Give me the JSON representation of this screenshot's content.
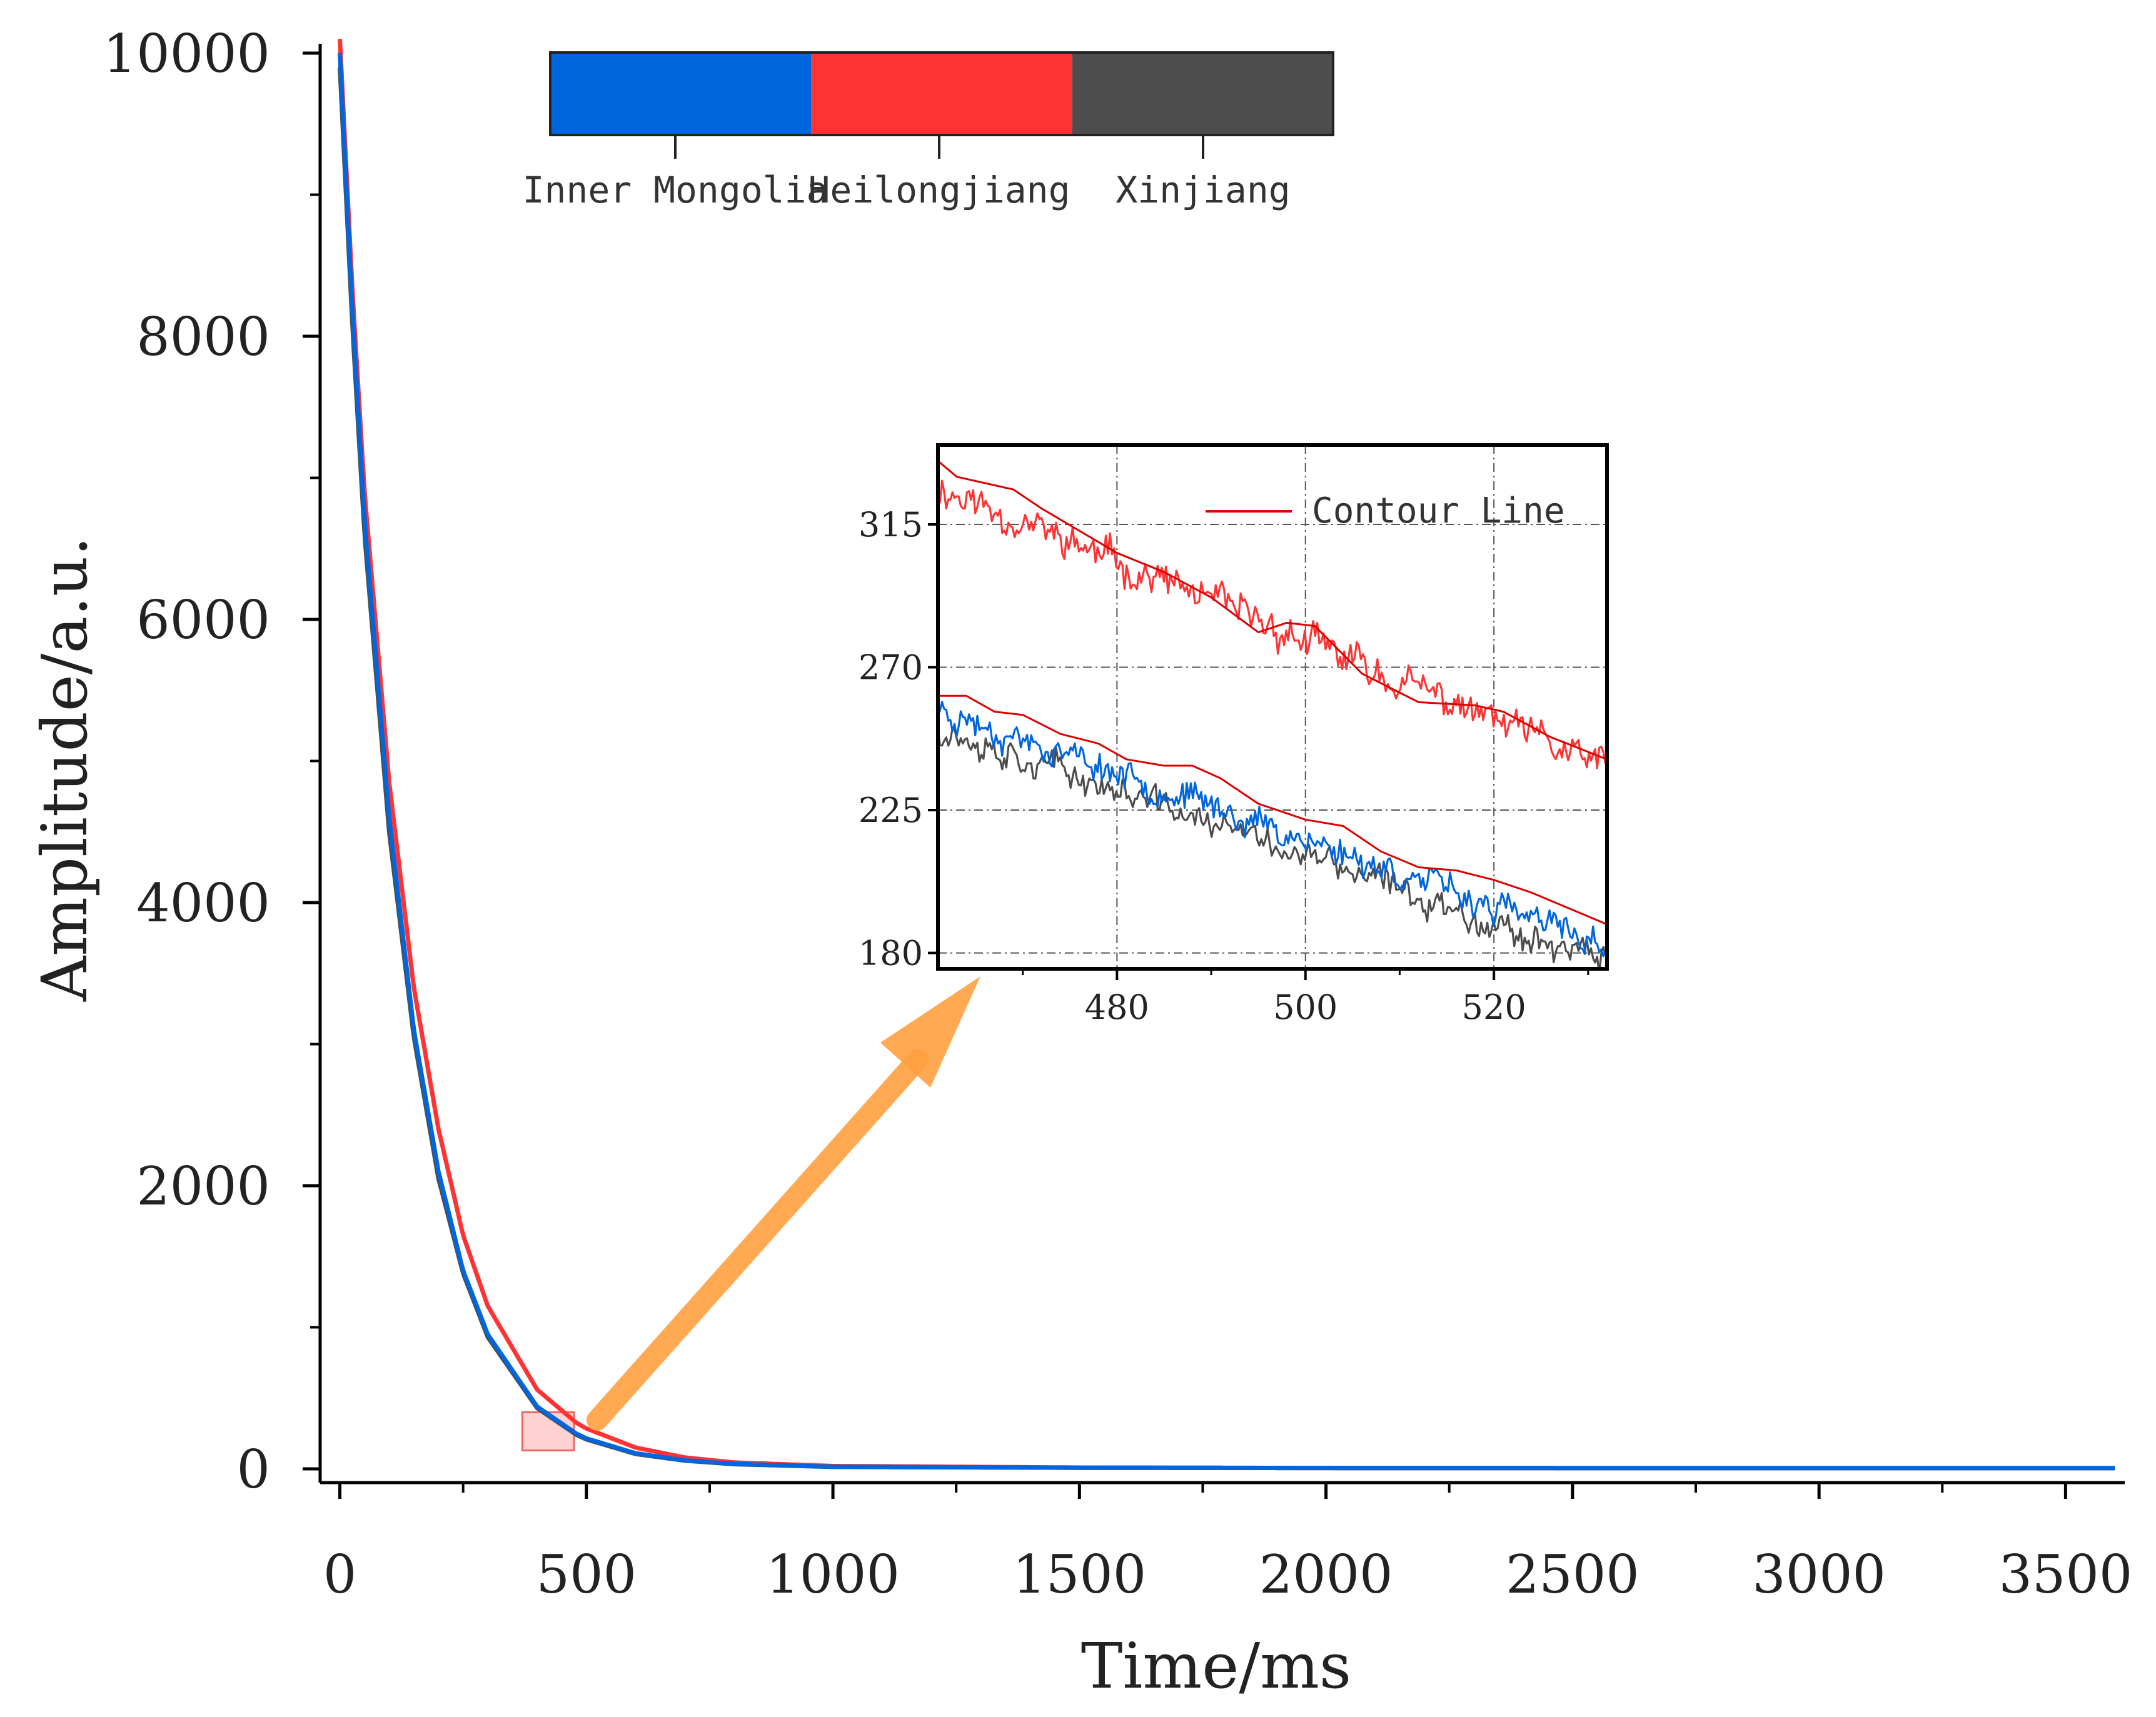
{
  "chart_data": [
    {
      "type": "line",
      "title": "",
      "xlabel": "Time/ms",
      "ylabel": "Amplitude/a.u.",
      "xlim": [
        -40,
        3620
      ],
      "ylim": [
        0,
        10000
      ],
      "x_ticks": [
        0,
        500,
        1000,
        1500,
        2000,
        2500,
        3000,
        3500
      ],
      "y_ticks": [
        0,
        2000,
        4000,
        6000,
        8000,
        10000
      ],
      "x_tick_labels": [
        "0",
        "500",
        "1000",
        "1500",
        "2000",
        "2500",
        "3000",
        "3500"
      ],
      "y_tick_labels": [
        "0",
        "2000",
        "4000",
        "6000",
        "8000",
        "10000"
      ],
      "grid": false,
      "legend_position": "top",
      "legend": [
        "Inner Mongolia",
        "Heilongjiang",
        "Xinjiang"
      ],
      "series": [
        {
          "name": "Inner Mongolia",
          "color": "#0066dd",
          "x": [
            0,
            25,
            50,
            100,
            150,
            200,
            250,
            300,
            400,
            480,
            500,
            600,
            700,
            800,
            1000,
            1500,
            2000,
            2500,
            3000,
            3600
          ],
          "values": [
            10000,
            8200,
            6700,
            4600,
            3100,
            2100,
            1400,
            950,
            440,
            248,
            215,
            110,
            60,
            35,
            15,
            8,
            6,
            5,
            5,
            5
          ]
        },
        {
          "name": "Heilongjiang",
          "color": "#ff3333",
          "x": [
            0,
            25,
            50,
            100,
            150,
            200,
            250,
            300,
            400,
            480,
            500,
            600,
            700,
            800,
            1000,
            1500,
            2000,
            2500,
            3000,
            3600
          ],
          "values": [
            10100,
            8350,
            6900,
            4850,
            3400,
            2400,
            1650,
            1150,
            560,
            325,
            285,
            150,
            80,
            45,
            20,
            9,
            6,
            5,
            5,
            5
          ]
        },
        {
          "name": "Xinjiang",
          "color": "#4d4d4d",
          "x": [
            0,
            25,
            50,
            100,
            150,
            200,
            250,
            300,
            400,
            480,
            500,
            600,
            700,
            800,
            1000,
            1500,
            2000,
            2500,
            3000,
            3600
          ],
          "values": [
            9900,
            8100,
            6600,
            4500,
            3050,
            2050,
            1380,
            930,
            430,
            240,
            208,
            105,
            58,
            33,
            14,
            8,
            6,
            5,
            5,
            5
          ]
        }
      ],
      "highlight_region": {
        "x": [
          370,
          475
        ],
        "y": [
          130,
          400
        ]
      }
    },
    {
      "type": "line",
      "title": "",
      "xlabel": "",
      "ylabel": "",
      "xlim": [
        461,
        532
      ],
      "ylim": [
        175,
        340
      ],
      "x_ticks": [
        480,
        500,
        520
      ],
      "y_ticks": [
        180,
        225,
        270,
        315
      ],
      "x_tick_labels": [
        "480",
        "500",
        "520"
      ],
      "y_tick_labels": [
        "180",
        "225",
        "270",
        "315"
      ],
      "grid": true,
      "legend_position": "top-right",
      "legend": [
        "Contour Line"
      ],
      "series": [
        {
          "name": "Heilongjiang",
          "color": "#ff3333",
          "x": [
            461,
            532
          ],
          "values": [
            327,
            238
          ],
          "noise": 7,
          "seed": 11
        },
        {
          "name": "Inner Mongolia",
          "color": "#0066dd",
          "x": [
            461,
            532
          ],
          "values": [
            257,
            182
          ],
          "noise": 6,
          "seed": 23
        },
        {
          "name": "Xinjiang",
          "color": "#4d4d4d",
          "x": [
            461,
            532
          ],
          "values": [
            251,
            177
          ],
          "noise": 6,
          "seed": 37
        },
        {
          "name": "Contour Line",
          "color": "#dd0000",
          "x": [
            461,
            463,
            469,
            472,
            480,
            485,
            490,
            495,
            498,
            501,
            506,
            512,
            518,
            521,
            526,
            532
          ],
          "values": [
            335,
            330,
            326,
            320,
            306,
            300,
            292,
            281,
            284,
            283,
            268,
            259,
            258,
            256,
            248,
            241
          ]
        },
        {
          "name": "Contour Line",
          "color": "#dd0000",
          "x": [
            461,
            464,
            467,
            470,
            474,
            478,
            481,
            485,
            488,
            491,
            495,
            500,
            504,
            508,
            512,
            516,
            520,
            524,
            528,
            532
          ],
          "values": [
            261,
            261,
            256,
            255,
            249,
            246,
            241,
            239,
            239,
            235,
            227,
            222,
            220,
            212,
            207,
            206,
            203,
            199,
            194,
            189
          ]
        }
      ]
    }
  ],
  "colorbar": {
    "segments": [
      {
        "label": "Inner Mongolia",
        "color": "#0066dd"
      },
      {
        "label": "Heilongjiang",
        "color": "#ff3333"
      },
      {
        "label": "Xinjiang",
        "color": "#4d4d4d"
      }
    ]
  },
  "arrow_color": "#ffa040"
}
